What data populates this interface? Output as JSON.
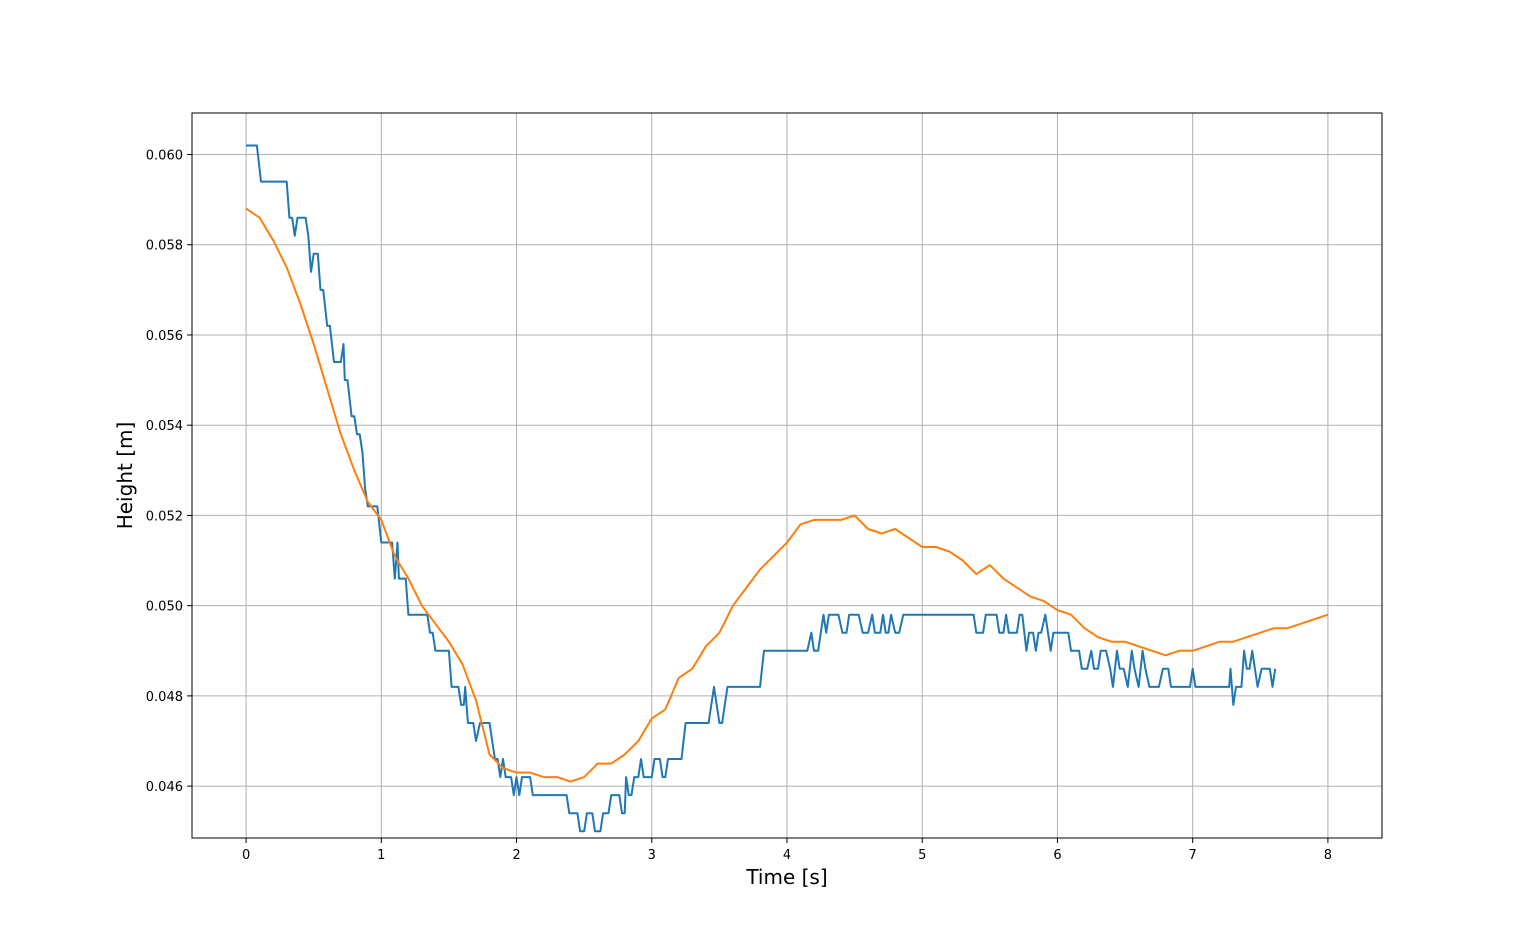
{
  "chart_data": {
    "type": "line",
    "title": "",
    "xlabel": "Time [s]",
    "ylabel": "Height [m]",
    "xlim": [
      -0.4,
      8.4
    ],
    "ylim": [
      0.04485,
      0.06092
    ],
    "grid": true,
    "xticks": [
      0,
      1,
      2,
      3,
      4,
      5,
      6,
      7,
      8
    ],
    "xtick_labels": [
      "0",
      "1",
      "2",
      "3",
      "4",
      "5",
      "6",
      "7",
      "8"
    ],
    "yticks": [
      0.046,
      0.048,
      0.05,
      0.052,
      0.054,
      0.056,
      0.058,
      0.06
    ],
    "ytick_labels": [
      "0.046",
      "0.048",
      "0.050",
      "0.052",
      "0.054",
      "0.056",
      "0.058",
      "0.060"
    ],
    "series": [
      {
        "color": "#1f77b4",
        "step": true,
        "points": [
          [
            0,
            0.0602
          ],
          [
            0.08,
            0.0602
          ],
          [
            0.11,
            0.0594
          ],
          [
            0.3,
            0.0594
          ],
          [
            0.32,
            0.0586
          ],
          [
            0.34,
            0.0586
          ],
          [
            0.36,
            0.0582
          ],
          [
            0.38,
            0.0586
          ],
          [
            0.44,
            0.0586
          ],
          [
            0.46,
            0.0582
          ],
          [
            0.48,
            0.0574
          ],
          [
            0.5,
            0.0578
          ],
          [
            0.53,
            0.0578
          ],
          [
            0.55,
            0.057
          ],
          [
            0.57,
            0.057
          ],
          [
            0.6,
            0.0562
          ],
          [
            0.62,
            0.0562
          ],
          [
            0.65,
            0.0554
          ],
          [
            0.7,
            0.0554
          ],
          [
            0.72,
            0.0558
          ],
          [
            0.73,
            0.055
          ],
          [
            0.75,
            0.055
          ],
          [
            0.78,
            0.0542
          ],
          [
            0.8,
            0.0542
          ],
          [
            0.82,
            0.0538
          ],
          [
            0.84,
            0.0538
          ],
          [
            0.86,
            0.0534
          ],
          [
            0.88,
            0.0526
          ],
          [
            0.9,
            0.0522
          ],
          [
            0.97,
            0.0522
          ],
          [
            1.0,
            0.0514
          ],
          [
            1.08,
            0.0514
          ],
          [
            1.1,
            0.0506
          ],
          [
            1.12,
            0.0514
          ],
          [
            1.13,
            0.0506
          ],
          [
            1.18,
            0.0506
          ],
          [
            1.2,
            0.0498
          ],
          [
            1.34,
            0.0498
          ],
          [
            1.36,
            0.0494
          ],
          [
            1.38,
            0.0494
          ],
          [
            1.4,
            0.049
          ],
          [
            1.5,
            0.049
          ],
          [
            1.52,
            0.0482
          ],
          [
            1.57,
            0.0482
          ],
          [
            1.59,
            0.0478
          ],
          [
            1.61,
            0.0478
          ],
          [
            1.62,
            0.0482
          ],
          [
            1.64,
            0.0474
          ],
          [
            1.68,
            0.0474
          ],
          [
            1.7,
            0.047
          ],
          [
            1.73,
            0.0474
          ],
          [
            1.8,
            0.0474
          ],
          [
            1.82,
            0.047
          ],
          [
            1.84,
            0.0466
          ],
          [
            1.86,
            0.0466
          ],
          [
            1.88,
            0.0462
          ],
          [
            1.9,
            0.0466
          ],
          [
            1.92,
            0.0462
          ],
          [
            1.96,
            0.0462
          ],
          [
            1.98,
            0.0458
          ],
          [
            2.0,
            0.0462
          ],
          [
            2.02,
            0.0458
          ],
          [
            2.04,
            0.0462
          ],
          [
            2.1,
            0.0462
          ],
          [
            2.12,
            0.0458
          ],
          [
            2.37,
            0.0458
          ],
          [
            2.39,
            0.0454
          ],
          [
            2.45,
            0.0454
          ],
          [
            2.47,
            0.045
          ],
          [
            2.5,
            0.045
          ],
          [
            2.52,
            0.0454
          ],
          [
            2.56,
            0.0454
          ],
          [
            2.58,
            0.045
          ],
          [
            2.62,
            0.045
          ],
          [
            2.64,
            0.0454
          ],
          [
            2.68,
            0.0454
          ],
          [
            2.7,
            0.0458
          ],
          [
            2.76,
            0.0458
          ],
          [
            2.78,
            0.0454
          ],
          [
            2.8,
            0.0454
          ],
          [
            2.81,
            0.0462
          ],
          [
            2.83,
            0.0458
          ],
          [
            2.85,
            0.0458
          ],
          [
            2.87,
            0.0462
          ],
          [
            2.9,
            0.0462
          ],
          [
            2.92,
            0.0466
          ],
          [
            2.94,
            0.0462
          ],
          [
            3.0,
            0.0462
          ],
          [
            3.02,
            0.0466
          ],
          [
            3.06,
            0.0466
          ],
          [
            3.08,
            0.0462
          ],
          [
            3.1,
            0.0462
          ],
          [
            3.12,
            0.0466
          ],
          [
            3.22,
            0.0466
          ],
          [
            3.25,
            0.0474
          ],
          [
            3.42,
            0.0474
          ],
          [
            3.46,
            0.0482
          ],
          [
            3.5,
            0.0474
          ],
          [
            3.52,
            0.0474
          ],
          [
            3.56,
            0.0482
          ],
          [
            3.8,
            0.0482
          ],
          [
            3.83,
            0.049
          ],
          [
            4.15,
            0.049
          ],
          [
            4.18,
            0.0494
          ],
          [
            4.2,
            0.049
          ],
          [
            4.23,
            0.049
          ],
          [
            4.27,
            0.0498
          ],
          [
            4.29,
            0.0494
          ],
          [
            4.31,
            0.0498
          ],
          [
            4.38,
            0.0498
          ],
          [
            4.41,
            0.0494
          ],
          [
            4.44,
            0.0494
          ],
          [
            4.46,
            0.0498
          ],
          [
            4.53,
            0.0498
          ],
          [
            4.56,
            0.0494
          ],
          [
            4.6,
            0.0494
          ],
          [
            4.63,
            0.0498
          ],
          [
            4.65,
            0.0494
          ],
          [
            4.69,
            0.0494
          ],
          [
            4.71,
            0.0498
          ],
          [
            4.73,
            0.0494
          ],
          [
            4.75,
            0.0494
          ],
          [
            4.77,
            0.0498
          ],
          [
            4.8,
            0.0494
          ],
          [
            4.83,
            0.0494
          ],
          [
            4.86,
            0.0498
          ],
          [
            5.38,
            0.0498
          ],
          [
            5.4,
            0.0494
          ],
          [
            5.45,
            0.0494
          ],
          [
            5.47,
            0.0498
          ],
          [
            5.55,
            0.0498
          ],
          [
            5.57,
            0.0494
          ],
          [
            5.6,
            0.0494
          ],
          [
            5.62,
            0.0498
          ],
          [
            5.64,
            0.0494
          ],
          [
            5.7,
            0.0494
          ],
          [
            5.72,
            0.0498
          ],
          [
            5.74,
            0.0498
          ],
          [
            5.77,
            0.049
          ],
          [
            5.79,
            0.0494
          ],
          [
            5.82,
            0.0494
          ],
          [
            5.84,
            0.049
          ],
          [
            5.86,
            0.0494
          ],
          [
            5.88,
            0.0494
          ],
          [
            5.91,
            0.0498
          ],
          [
            5.93,
            0.0494
          ],
          [
            5.95,
            0.049
          ],
          [
            5.97,
            0.0494
          ],
          [
            6.08,
            0.0494
          ],
          [
            6.1,
            0.049
          ],
          [
            6.16,
            0.049
          ],
          [
            6.18,
            0.0486
          ],
          [
            6.22,
            0.0486
          ],
          [
            6.25,
            0.049
          ],
          [
            6.27,
            0.0486
          ],
          [
            6.3,
            0.0486
          ],
          [
            6.32,
            0.049
          ],
          [
            6.36,
            0.049
          ],
          [
            6.39,
            0.0486
          ],
          [
            6.41,
            0.0482
          ],
          [
            6.44,
            0.049
          ],
          [
            6.46,
            0.0486
          ],
          [
            6.49,
            0.0486
          ],
          [
            6.52,
            0.0482
          ],
          [
            6.55,
            0.049
          ],
          [
            6.57,
            0.0486
          ],
          [
            6.6,
            0.0482
          ],
          [
            6.63,
            0.049
          ],
          [
            6.65,
            0.0486
          ],
          [
            6.68,
            0.0482
          ],
          [
            6.75,
            0.0482
          ],
          [
            6.78,
            0.0486
          ],
          [
            6.82,
            0.0486
          ],
          [
            6.84,
            0.0482
          ],
          [
            6.98,
            0.0482
          ],
          [
            7.0,
            0.0486
          ],
          [
            7.02,
            0.0482
          ],
          [
            7.27,
            0.0482
          ],
          [
            7.28,
            0.0486
          ],
          [
            7.3,
            0.0478
          ],
          [
            7.32,
            0.0482
          ],
          [
            7.36,
            0.0482
          ],
          [
            7.38,
            0.049
          ],
          [
            7.4,
            0.0486
          ],
          [
            7.42,
            0.0486
          ],
          [
            7.44,
            0.049
          ],
          [
            7.46,
            0.0486
          ],
          [
            7.48,
            0.0482
          ],
          [
            7.51,
            0.0486
          ],
          [
            7.57,
            0.0486
          ],
          [
            7.59,
            0.0482
          ],
          [
            7.61,
            0.0486
          ]
        ]
      },
      {
        "color": "#ff7f0e",
        "step": false,
        "points": [
          [
            0,
            0.0588
          ],
          [
            0.1,
            0.0586
          ],
          [
            0.2,
            0.0581
          ],
          [
            0.3,
            0.0575
          ],
          [
            0.4,
            0.0567
          ],
          [
            0.5,
            0.0558
          ],
          [
            0.6,
            0.0548
          ],
          [
            0.7,
            0.0538
          ],
          [
            0.8,
            0.053
          ],
          [
            0.9,
            0.0523
          ],
          [
            1.0,
            0.0519
          ],
          [
            1.1,
            0.0511
          ],
          [
            1.2,
            0.0506
          ],
          [
            1.3,
            0.05
          ],
          [
            1.4,
            0.0496
          ],
          [
            1.5,
            0.0492
          ],
          [
            1.6,
            0.0487
          ],
          [
            1.7,
            0.0479
          ],
          [
            1.8,
            0.0467
          ],
          [
            1.9,
            0.0464
          ],
          [
            2.0,
            0.0463
          ],
          [
            2.1,
            0.0463
          ],
          [
            2.2,
            0.0462
          ],
          [
            2.3,
            0.0462
          ],
          [
            2.4,
            0.0461
          ],
          [
            2.5,
            0.0462
          ],
          [
            2.6,
            0.0465
          ],
          [
            2.7,
            0.0465
          ],
          [
            2.8,
            0.0467
          ],
          [
            2.9,
            0.047
          ],
          [
            3.0,
            0.0475
          ],
          [
            3.1,
            0.0477
          ],
          [
            3.2,
            0.0484
          ],
          [
            3.3,
            0.0486
          ],
          [
            3.4,
            0.0491
          ],
          [
            3.5,
            0.0494
          ],
          [
            3.6,
            0.05
          ],
          [
            3.7,
            0.0504
          ],
          [
            3.8,
            0.0508
          ],
          [
            3.9,
            0.0511
          ],
          [
            4.0,
            0.0514
          ],
          [
            4.1,
            0.0518
          ],
          [
            4.2,
            0.0519
          ],
          [
            4.3,
            0.0519
          ],
          [
            4.4,
            0.0519
          ],
          [
            4.5,
            0.052
          ],
          [
            4.6,
            0.0517
          ],
          [
            4.7,
            0.0516
          ],
          [
            4.8,
            0.0517
          ],
          [
            4.9,
            0.0515
          ],
          [
            5.0,
            0.0513
          ],
          [
            5.1,
            0.0513
          ],
          [
            5.2,
            0.0512
          ],
          [
            5.3,
            0.051
          ],
          [
            5.4,
            0.0507
          ],
          [
            5.5,
            0.0509
          ],
          [
            5.6,
            0.0506
          ],
          [
            5.7,
            0.0504
          ],
          [
            5.8,
            0.0502
          ],
          [
            5.9,
            0.0501
          ],
          [
            6.0,
            0.0499
          ],
          [
            6.1,
            0.0498
          ],
          [
            6.2,
            0.0495
          ],
          [
            6.3,
            0.0493
          ],
          [
            6.4,
            0.0492
          ],
          [
            6.5,
            0.0492
          ],
          [
            6.6,
            0.0491
          ],
          [
            6.7,
            0.049
          ],
          [
            6.8,
            0.0489
          ],
          [
            6.9,
            0.049
          ],
          [
            7.0,
            0.049
          ],
          [
            7.1,
            0.0491
          ],
          [
            7.2,
            0.0492
          ],
          [
            7.3,
            0.0492
          ],
          [
            7.4,
            0.0493
          ],
          [
            7.5,
            0.0494
          ],
          [
            7.6,
            0.0495
          ],
          [
            7.7,
            0.0495
          ],
          [
            7.8,
            0.0496
          ],
          [
            7.9,
            0.0497
          ],
          [
            8.0,
            0.0498
          ]
        ]
      }
    ]
  }
}
